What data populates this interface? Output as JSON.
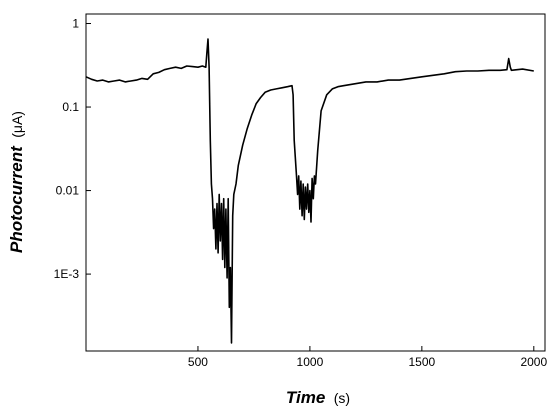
{
  "chart_data": {
    "type": "line",
    "title": "",
    "xlabel": "Time",
    "xlabel_unit": "(s)",
    "ylabel": "Photocurrent",
    "ylabel_unit": "(μA)",
    "xlim": [
      0,
      2050
    ],
    "ylim": [
      0.00012,
      1.3
    ],
    "yscale": "log",
    "grid": false,
    "legend": "none",
    "x_ticks": [
      {
        "value": 500,
        "label": "500"
      },
      {
        "value": 1000,
        "label": "1000"
      },
      {
        "value": 1500,
        "label": "1500"
      },
      {
        "value": 2000,
        "label": "2000"
      }
    ],
    "y_ticks": [
      {
        "value": 1,
        "label": "1"
      },
      {
        "value": 0.1,
        "label": "0.1"
      },
      {
        "value": 0.01,
        "label": "0.01"
      },
      {
        "value": 0.001,
        "label": "1E-3"
      }
    ],
    "series": [
      {
        "color": "#000000",
        "x": [
          0,
          25,
          50,
          75,
          100,
          125,
          150,
          175,
          200,
          225,
          250,
          275,
          300,
          325,
          350,
          375,
          400,
          425,
          450,
          475,
          500,
          520,
          535,
          540,
          545,
          550,
          555,
          560,
          565,
          570,
          575,
          580,
          585,
          590,
          595,
          600,
          605,
          610,
          615,
          620,
          625,
          630,
          635,
          640,
          645,
          650,
          655,
          660,
          670,
          680,
          700,
          720,
          740,
          760,
          780,
          800,
          825,
          850,
          875,
          900,
          920,
          925,
          930,
          935,
          940,
          945,
          950,
          955,
          960,
          965,
          970,
          975,
          980,
          985,
          990,
          995,
          1000,
          1005,
          1010,
          1015,
          1020,
          1025,
          1035,
          1050,
          1075,
          1100,
          1125,
          1150,
          1200,
          1250,
          1300,
          1350,
          1400,
          1450,
          1500,
          1550,
          1600,
          1650,
          1700,
          1750,
          1800,
          1850,
          1880,
          1888,
          1895,
          1900,
          1950,
          2000
        ],
        "y": [
          0.23,
          0.215,
          0.205,
          0.21,
          0.2,
          0.205,
          0.21,
          0.2,
          0.205,
          0.21,
          0.22,
          0.215,
          0.25,
          0.26,
          0.28,
          0.29,
          0.3,
          0.29,
          0.31,
          0.305,
          0.3,
          0.31,
          0.3,
          0.45,
          0.65,
          0.3,
          0.04,
          0.012,
          0.008,
          0.0035,
          0.006,
          0.002,
          0.007,
          0.0018,
          0.009,
          0.0025,
          0.007,
          0.0015,
          0.008,
          0.0012,
          0.006,
          0.0009,
          0.008,
          0.0004,
          0.0012,
          0.00015,
          0.005,
          0.009,
          0.012,
          0.02,
          0.035,
          0.055,
          0.08,
          0.11,
          0.13,
          0.15,
          0.16,
          0.165,
          0.17,
          0.175,
          0.18,
          0.14,
          0.04,
          0.025,
          0.015,
          0.009,
          0.015,
          0.006,
          0.013,
          0.005,
          0.012,
          0.0045,
          0.011,
          0.006,
          0.012,
          0.0055,
          0.01,
          0.0042,
          0.014,
          0.008,
          0.015,
          0.012,
          0.03,
          0.09,
          0.14,
          0.165,
          0.175,
          0.18,
          0.19,
          0.2,
          0.2,
          0.21,
          0.21,
          0.22,
          0.23,
          0.24,
          0.25,
          0.265,
          0.27,
          0.27,
          0.275,
          0.275,
          0.28,
          0.38,
          0.3,
          0.275,
          0.285,
          0.27
        ]
      }
    ]
  }
}
